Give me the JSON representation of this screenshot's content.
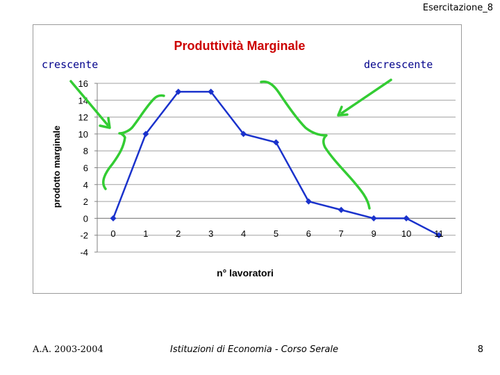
{
  "header": {
    "label": "Esercitazione_8"
  },
  "annotations": {
    "left": "crescente",
    "right": "decrescente"
  },
  "footer": {
    "left": "A.A. 2003-2004",
    "center": "Istituzioni di Economia  -  Corso Serale",
    "page": "8"
  },
  "colors": {
    "series": "#1a32cc",
    "arrows": "#33cc33",
    "title": "#cc0000"
  },
  "chart_data": {
    "type": "line",
    "title": "Produttività Marginale",
    "xlabel": "n° lavoratori",
    "ylabel": "prodotto marginale",
    "categories": [
      "0",
      "1",
      "2",
      "3",
      "4",
      "5",
      "6",
      "7",
      "9",
      "10",
      "11"
    ],
    "series": [
      {
        "values": [
          0,
          10,
          15,
          15,
          10,
          9,
          2,
          1,
          0,
          0,
          -2
        ]
      }
    ],
    "ylim": [
      -4,
      16
    ],
    "yticks": [
      -4,
      -2,
      0,
      2,
      4,
      6,
      8,
      10,
      12,
      14,
      16
    ],
    "grid": true,
    "marker": "diamond"
  }
}
